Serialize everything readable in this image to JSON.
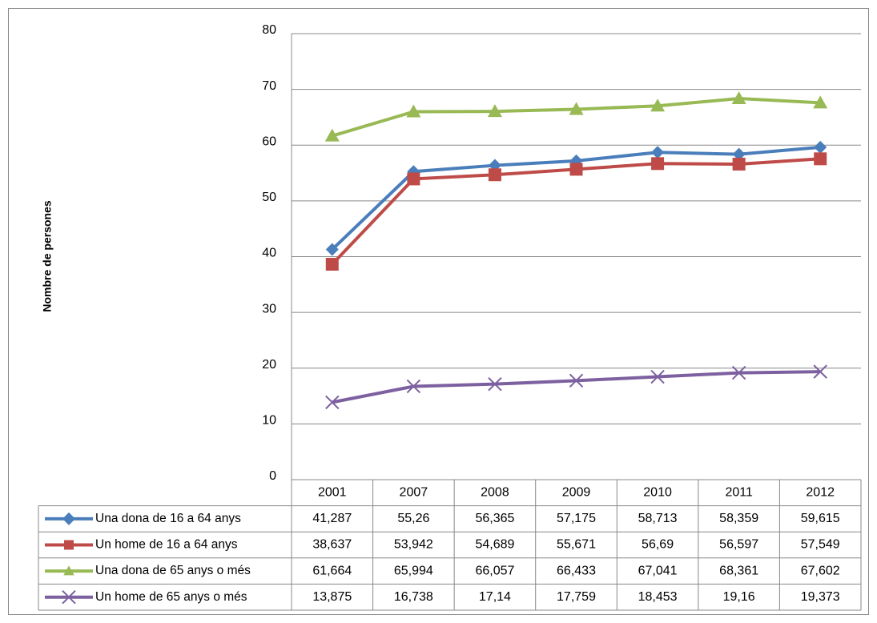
{
  "chart_data": {
    "type": "line",
    "y_label": "Nombre de persones",
    "categories": [
      "2001",
      "2007",
      "2008",
      "2009",
      "2010",
      "2011",
      "2012"
    ],
    "series": [
      {
        "name": "Una dona de 16 a 64 anys",
        "color": "#4a7ebb",
        "marker": "diamond",
        "values": [
          41.287,
          55.26,
          56.365,
          57.175,
          58.713,
          58.359,
          59.615
        ],
        "value_labels": [
          "41,287",
          "55,26",
          "56,365",
          "57,175",
          "58,713",
          "58,359",
          "59,615"
        ]
      },
      {
        "name": "Un home de 16 a 64 anys",
        "color": "#be4b48",
        "marker": "square",
        "values": [
          38.637,
          53.942,
          54.689,
          55.671,
          56.69,
          56.597,
          57.549
        ],
        "value_labels": [
          "38,637",
          "53,942",
          "54,689",
          "55,671",
          "56,69",
          "56,597",
          "57,549"
        ]
      },
      {
        "name": "Una dona de 65 anys o més",
        "color": "#98b954",
        "marker": "triangle",
        "values": [
          61.664,
          65.994,
          66.057,
          66.433,
          67.041,
          68.361,
          67.602
        ],
        "value_labels": [
          "61,664",
          "65,994",
          "66,057",
          "66,433",
          "67,041",
          "68,361",
          "67,602"
        ]
      },
      {
        "name": "Un home de 65 anys o més",
        "color": "#7d60a0",
        "marker": "x",
        "values": [
          13.875,
          16.738,
          17.14,
          17.759,
          18.453,
          19.16,
          19.373
        ],
        "value_labels": [
          "13,875",
          "16,738",
          "17,14",
          "17,759",
          "18,453",
          "19,16",
          "19,373"
        ]
      }
    ],
    "ylim": [
      0,
      80
    ],
    "yticks": [
      0,
      10,
      20,
      30,
      40,
      50,
      60,
      70,
      80
    ],
    "grid": true
  }
}
